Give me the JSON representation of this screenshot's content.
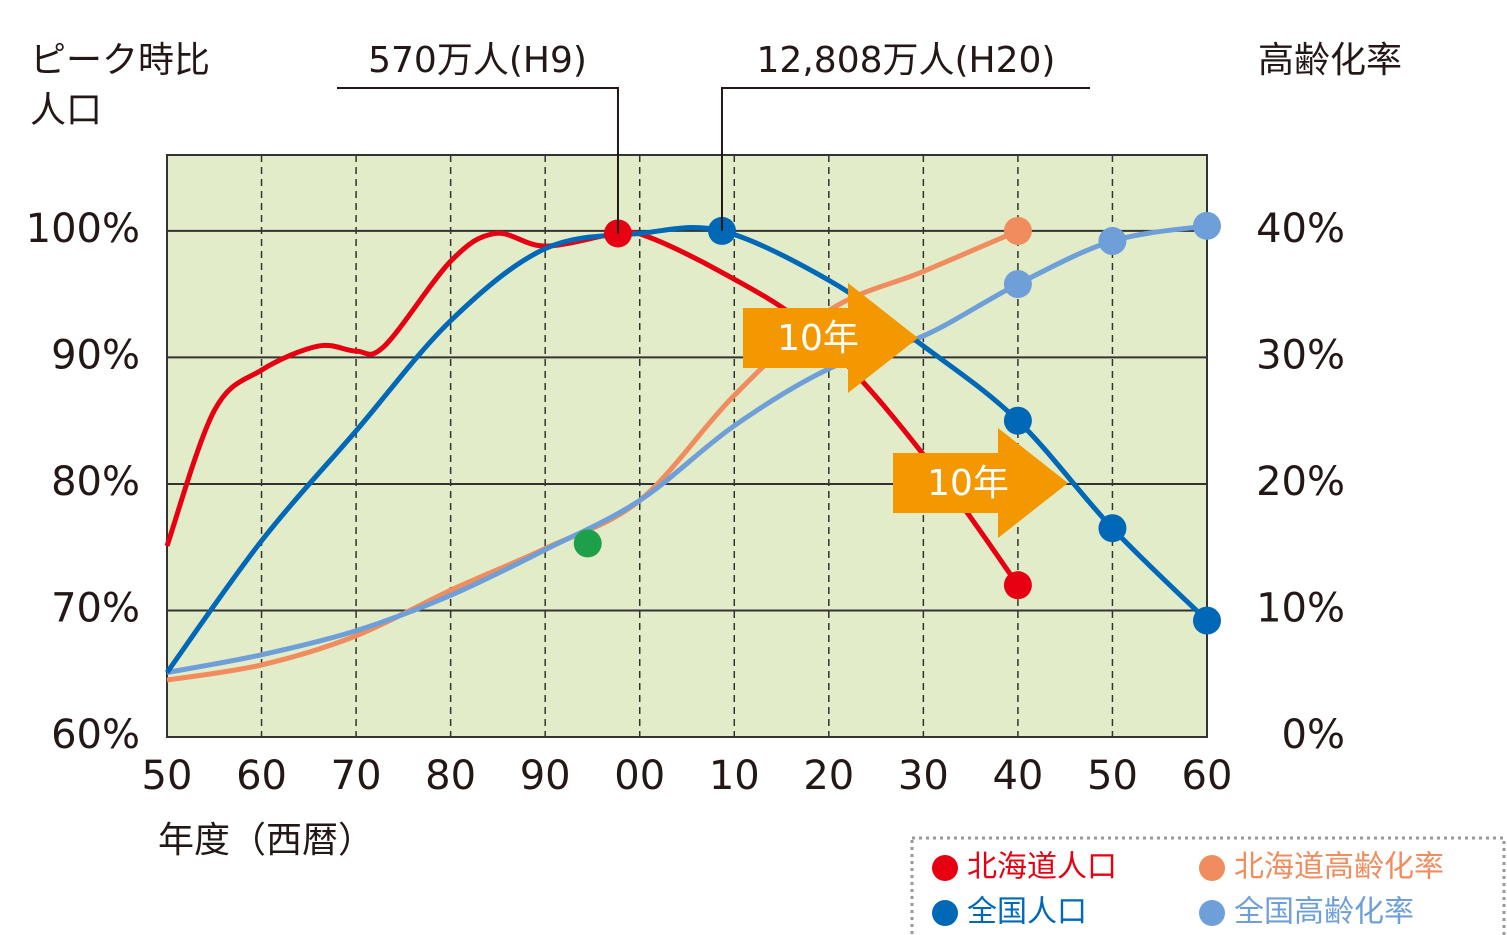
{
  "chart_data": {
    "type": "line",
    "ylabel_lines": [
      "ピーク時比",
      "人口"
    ],
    "y2label": "高齢化率",
    "xlabel": "年度（西暦）",
    "xlim": [
      1950,
      2060
    ],
    "xticks": [
      {
        "value": 1950,
        "label": "50"
      },
      {
        "value": 1960,
        "label": "60"
      },
      {
        "value": 1970,
        "label": "70"
      },
      {
        "value": 1980,
        "label": "80"
      },
      {
        "value": 1990,
        "label": "90"
      },
      {
        "value": 2000,
        "label": "00"
      },
      {
        "value": 2010,
        "label": "10"
      },
      {
        "value": 2020,
        "label": "20"
      },
      {
        "value": 2030,
        "label": "30"
      },
      {
        "value": 2040,
        "label": "40"
      },
      {
        "value": 2050,
        "label": "50"
      },
      {
        "value": 2060,
        "label": "60"
      }
    ],
    "ylim": [
      60,
      106
    ],
    "yticks": [
      {
        "value": 60,
        "label": "60%"
      },
      {
        "value": 70,
        "label": "70%"
      },
      {
        "value": 80,
        "label": "80%"
      },
      {
        "value": 90,
        "label": "90%"
      },
      {
        "value": 100,
        "label": "100%"
      }
    ],
    "y2lim": [
      0,
      46
    ],
    "y2ticks": [
      {
        "value": 0,
        "label": "0%"
      },
      {
        "value": 10,
        "label": "10%"
      },
      {
        "value": 20,
        "label": "20%"
      },
      {
        "value": 30,
        "label": "30%"
      },
      {
        "value": 40,
        "label": "40%"
      }
    ],
    "grid": true,
    "plot_background": "#e2ecc8",
    "series": [
      {
        "name": "北海道人口",
        "color": "#e60012",
        "x": [
          1950,
          1955,
          1960,
          1966,
          1970,
          1973,
          1980,
          1984.7,
          1990,
          1997.7,
          2001,
          2008.5,
          2017,
          2024.4,
          2032.9,
          2040
        ],
        "values": [
          75.1,
          85.8,
          89.0,
          90.9,
          90.5,
          90.9,
          97.6,
          99.8,
          98.8,
          99.8,
          99.5,
          96.8,
          92.9,
          87.4,
          79.5,
          72.0
        ],
        "markers": [
          9,
          15
        ]
      },
      {
        "name": "北海道高齢化率",
        "color": "#f08c5e",
        "axis": "y2",
        "x": [
          1950,
          1960,
          1970,
          1980,
          1990,
          2000,
          2010,
          2020,
          2030,
          2040
        ],
        "values": [
          4.5,
          5.7,
          8.0,
          11.6,
          14.9,
          18.7,
          27.0,
          33.7,
          36.8,
          40.0
        ],
        "markers": [
          9
        ]
      },
      {
        "name": "全国人口",
        "color": "#0068b7",
        "x": [
          1950,
          1960,
          1970,
          1980,
          1990,
          2000,
          2008.7,
          2020,
          2030,
          2040,
          2050,
          2060
        ],
        "values": [
          65.1,
          75.5,
          84.2,
          92.9,
          98.6,
          99.8,
          100.0,
          96.1,
          90.9,
          85.0,
          76.5,
          69.2
        ],
        "markers": [
          6,
          9,
          10,
          11
        ]
      },
      {
        "name": "全国高齢化率",
        "color": "#6f9fd8",
        "axis": "y2",
        "x": [
          1950,
          1960,
          1970,
          1980,
          1990,
          2000,
          2010,
          2020,
          2030,
          2040,
          2050,
          2060
        ],
        "values": [
          5.1,
          6.5,
          8.4,
          11.2,
          14.8,
          18.7,
          24.6,
          29.1,
          31.7,
          35.8,
          39.2,
          40.4
        ],
        "markers": [
          9,
          10,
          11
        ]
      }
    ],
    "highlight_point": {
      "x": 1994.5,
      "value": 15.3,
      "color": "#1ea04b",
      "axis": "y2"
    },
    "callouts": [
      {
        "text": "570万人(H9)",
        "series": 0,
        "point": 9
      },
      {
        "text": "12,808万人(H20)",
        "series": 2,
        "point": 6
      }
    ],
    "arrows": [
      {
        "text": "10年"
      },
      {
        "text": "10年"
      }
    ],
    "arrow_color": "#f39800"
  }
}
